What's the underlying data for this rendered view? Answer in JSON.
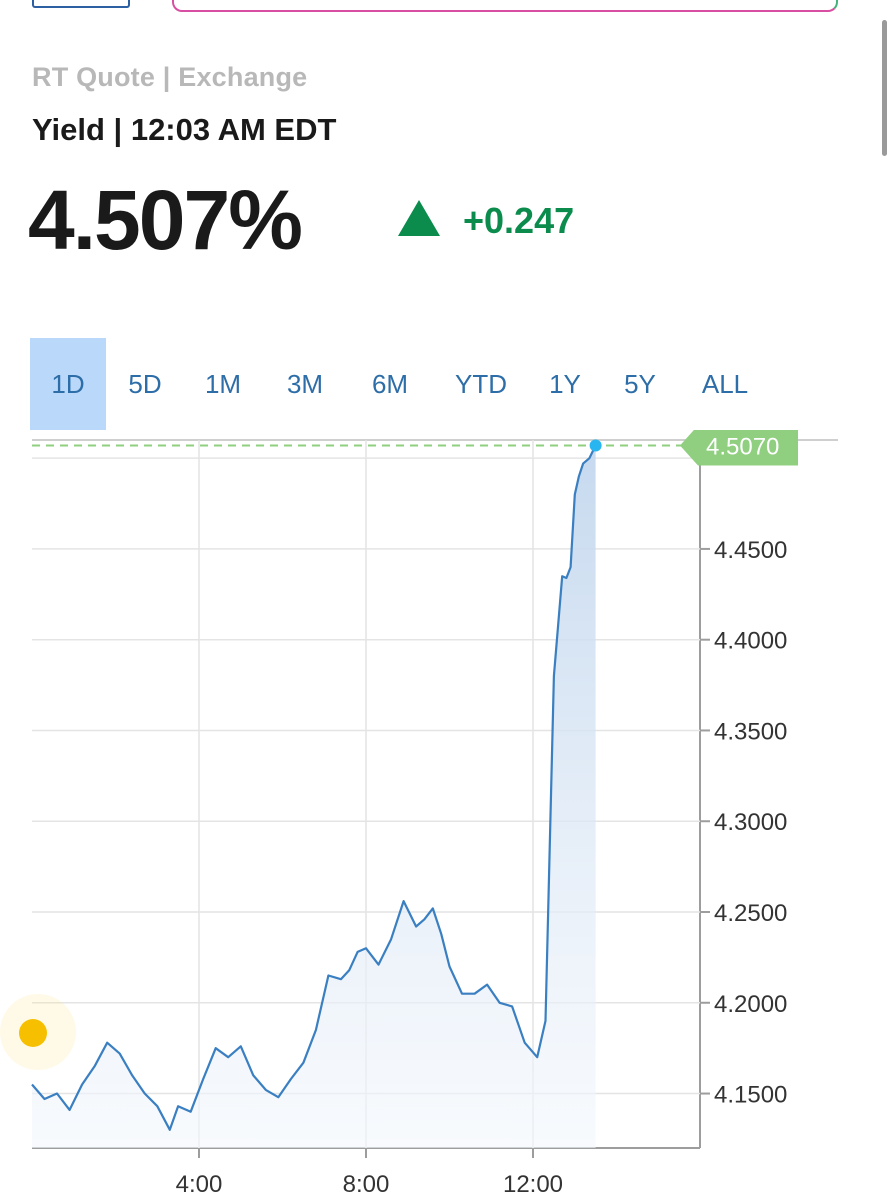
{
  "header": {
    "quote_source": "RT Quote | Exchange",
    "yield_time": "Yield | 12:03 AM EDT",
    "price": "4.507%",
    "change": "+0.247",
    "change_direction": "up",
    "change_color": "#0b8c4d"
  },
  "range_tabs": [
    {
      "label": "1D",
      "active": true
    },
    {
      "label": "5D",
      "active": false
    },
    {
      "label": "1M",
      "active": false
    },
    {
      "label": "3M",
      "active": false
    },
    {
      "label": "6M",
      "active": false
    },
    {
      "label": "YTD",
      "active": false
    },
    {
      "label": "1Y",
      "active": false
    },
    {
      "label": "5Y",
      "active": false
    },
    {
      "label": "ALL",
      "active": false
    }
  ],
  "chart_data": {
    "type": "area",
    "current_value_label": "4.5070",
    "current_value": 4.507,
    "y_ticks": [
      "4.1500",
      "4.2000",
      "4.2500",
      "4.3000",
      "4.3500",
      "4.4000",
      "4.4500"
    ],
    "x_ticks": [
      "4:00",
      "8:00",
      "12:00"
    ],
    "x_range_hours": [
      0,
      16
    ],
    "ylim": [
      4.12,
      4.51
    ],
    "line_color": "#3a7fc1",
    "reference_line_color": "#8fcf7f",
    "series": [
      {
        "x_hours": [
          0.0,
          0.3,
          0.6,
          0.9,
          1.2,
          1.5,
          1.8,
          2.1,
          2.4,
          2.7,
          3.0,
          3.3,
          3.5,
          3.8,
          4.1,
          4.4,
          4.7,
          5.0,
          5.3,
          5.6,
          5.9,
          6.2,
          6.5,
          6.8,
          7.1,
          7.4,
          7.6,
          7.8,
          8.0,
          8.3,
          8.6,
          8.9,
          9.2,
          9.4,
          9.6,
          9.8,
          10.0,
          10.3,
          10.6,
          10.9,
          11.2,
          11.5,
          11.8,
          12.1,
          12.3,
          12.5,
          12.7,
          12.8,
          12.9,
          13.0,
          13.1,
          13.2,
          13.35,
          13.5
        ],
        "values": [
          4.155,
          4.147,
          4.15,
          4.141,
          4.155,
          4.165,
          4.178,
          4.172,
          4.16,
          4.15,
          4.143,
          4.13,
          4.143,
          4.14,
          4.158,
          4.175,
          4.17,
          4.176,
          4.16,
          4.152,
          4.148,
          4.158,
          4.167,
          4.185,
          4.215,
          4.213,
          4.218,
          4.228,
          4.23,
          4.221,
          4.235,
          4.256,
          4.242,
          4.246,
          4.252,
          4.238,
          4.22,
          4.205,
          4.205,
          4.21,
          4.2,
          4.198,
          4.178,
          4.17,
          4.19,
          4.38,
          4.435,
          4.434,
          4.44,
          4.48,
          4.49,
          4.497,
          4.5,
          4.507
        ]
      }
    ]
  }
}
